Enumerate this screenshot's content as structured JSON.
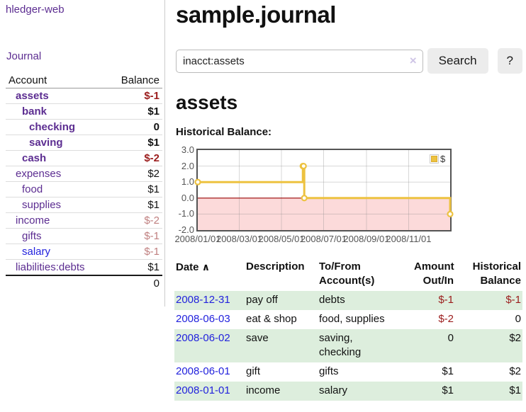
{
  "sidebar": {
    "app_title": "hledger-web",
    "journal_label": "Journal",
    "accounts": {
      "headers": {
        "account": "Account",
        "balance": "Balance"
      },
      "rows": [
        {
          "name": "assets",
          "balance": "$-1"
        },
        {
          "name": "bank",
          "balance": "$1"
        },
        {
          "name": "checking",
          "balance": "0"
        },
        {
          "name": "saving",
          "balance": "$1"
        },
        {
          "name": "cash",
          "balance": "$-2"
        },
        {
          "name": "expenses",
          "balance": "$2"
        },
        {
          "name": "food",
          "balance": "$1"
        },
        {
          "name": "supplies",
          "balance": "$1"
        },
        {
          "name": "income",
          "balance": "$-2"
        },
        {
          "name": "gifts",
          "balance": "$-1"
        },
        {
          "name": "salary",
          "balance": "$-1"
        },
        {
          "name": "liabilities:debts",
          "balance": "$1"
        }
      ],
      "total": "0"
    }
  },
  "header": {
    "title": "sample.journal"
  },
  "search": {
    "value": "inacct:assets",
    "clear_icon": "×",
    "button_label": "Search",
    "help_label": "?"
  },
  "main": {
    "account_heading": "assets",
    "chart_label": "Historical Balance:"
  },
  "chart_data": {
    "type": "line",
    "step": true,
    "title": "Historical Balance",
    "series": [
      {
        "name": "$",
        "color": "#EDC240",
        "points": [
          [
            "2008-01-01",
            1
          ],
          [
            "2008-06-01",
            2
          ],
          [
            "2008-06-02",
            2
          ],
          [
            "2008-06-03",
            0
          ],
          [
            "2008-12-31",
            -1
          ]
        ]
      }
    ],
    "x_range": [
      "2008-01-01",
      "2008-12-31"
    ],
    "x_ticks": [
      {
        "date": "2008-01-01",
        "label": "2008/01/01"
      },
      {
        "date": "2008-03-01",
        "label": "2008/03/01"
      },
      {
        "date": "2008-05-01",
        "label": "2008/05/01"
      },
      {
        "date": "2008-07-01",
        "label": "2008/07/01"
      },
      {
        "date": "2008-09-01",
        "label": "2008/09/01"
      },
      {
        "date": "2008-11-01",
        "label": "2008/11/01"
      }
    ],
    "y_ticks": [
      3.0,
      2.0,
      1.0,
      0.0,
      -1.0,
      -2.0
    ],
    "ylim": [
      -2,
      3
    ],
    "legend": {
      "label": "$",
      "position": "top-right"
    },
    "colors": {
      "line": "#EDC240",
      "negative_region": "#fcdada",
      "zero_line": "#990000",
      "grid": "#e0e0e0",
      "border": "#545454"
    }
  },
  "register": {
    "headers": {
      "date": "Date",
      "sort_indicator": "∧",
      "description": "Description",
      "accounts": "To/From\nAccount(s)",
      "amount": "Amount\nOut/In",
      "balance": "Historical\nBalance"
    },
    "rows": [
      {
        "date": "2008-12-31",
        "description": "pay off",
        "accounts": "debts",
        "amount": "$-1",
        "balance": "$-1"
      },
      {
        "date": "2008-06-03",
        "description": "eat & shop",
        "accounts": "food, supplies",
        "amount": "$-2",
        "balance": "0"
      },
      {
        "date": "2008-06-02",
        "description": "save",
        "accounts": "saving,\nchecking",
        "amount": "0",
        "balance": "$2"
      },
      {
        "date": "2008-06-01",
        "description": "gift",
        "accounts": "gifts",
        "amount": "$1",
        "balance": "$2"
      },
      {
        "date": "2008-01-01",
        "description": "income",
        "accounts": "salary",
        "amount": "$1",
        "balance": "$1"
      }
    ]
  }
}
